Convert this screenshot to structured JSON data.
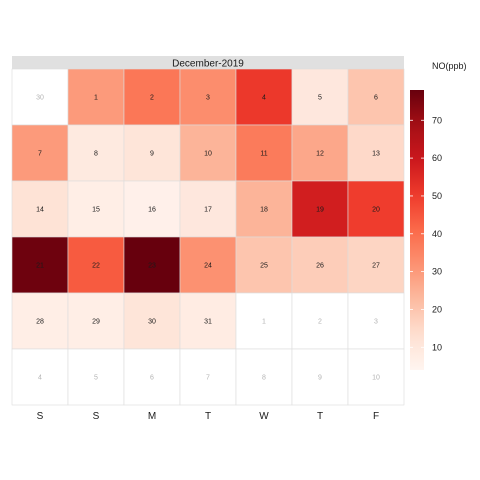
{
  "chart_data": {
    "type": "heatmap",
    "title": "December-2019",
    "legend_title": "NO(ppb)",
    "legend_ticks": [
      10,
      20,
      30,
      40,
      50,
      60,
      70
    ],
    "color_range": [
      4,
      78
    ],
    "color_low": "#fff5f0",
    "color_high": "#67000d",
    "weekday_labels": [
      "S",
      "S",
      "M",
      "T",
      "W",
      "T",
      "F"
    ],
    "cells": [
      {
        "day": "30",
        "value": null,
        "in_month": false
      },
      {
        "day": "1",
        "value": 30,
        "in_month": true
      },
      {
        "day": "2",
        "value": 38,
        "in_month": true
      },
      {
        "day": "3",
        "value": 33,
        "in_month": true
      },
      {
        "day": "4",
        "value": 51,
        "in_month": true
      },
      {
        "day": "5",
        "value": 10,
        "in_month": true
      },
      {
        "day": "6",
        "value": 20,
        "in_month": true
      },
      {
        "day": "7",
        "value": 30,
        "in_month": true
      },
      {
        "day": "8",
        "value": 9,
        "in_month": true
      },
      {
        "day": "9",
        "value": 11,
        "in_month": true
      },
      {
        "day": "10",
        "value": 24,
        "in_month": true
      },
      {
        "day": "11",
        "value": 37,
        "in_month": true
      },
      {
        "day": "12",
        "value": 27,
        "in_month": true
      },
      {
        "day": "13",
        "value": 15,
        "in_month": true
      },
      {
        "day": "14",
        "value": 12,
        "in_month": true
      },
      {
        "day": "15",
        "value": 7,
        "in_month": true
      },
      {
        "day": "16",
        "value": 6,
        "in_month": true
      },
      {
        "day": "17",
        "value": 10,
        "in_month": true
      },
      {
        "day": "18",
        "value": 24,
        "in_month": true
      },
      {
        "day": "19",
        "value": 58,
        "in_month": true
      },
      {
        "day": "20",
        "value": 50,
        "in_month": true
      },
      {
        "day": "21",
        "value": 77,
        "in_month": true
      },
      {
        "day": "22",
        "value": 44,
        "in_month": true
      },
      {
        "day": "23",
        "value": 78,
        "in_month": true
      },
      {
        "day": "24",
        "value": 32,
        "in_month": true
      },
      {
        "day": "25",
        "value": 20,
        "in_month": true
      },
      {
        "day": "26",
        "value": 18,
        "in_month": true
      },
      {
        "day": "27",
        "value": 16,
        "in_month": true
      },
      {
        "day": "28",
        "value": 7,
        "in_month": true
      },
      {
        "day": "29",
        "value": 7,
        "in_month": true
      },
      {
        "day": "30",
        "value": 11,
        "in_month": true
      },
      {
        "day": "31",
        "value": 8,
        "in_month": true
      },
      {
        "day": "1",
        "value": null,
        "in_month": false
      },
      {
        "day": "2",
        "value": null,
        "in_month": false
      },
      {
        "day": "3",
        "value": null,
        "in_month": false
      },
      {
        "day": "4",
        "value": null,
        "in_month": false
      },
      {
        "day": "5",
        "value": null,
        "in_month": false
      },
      {
        "day": "6",
        "value": null,
        "in_month": false
      },
      {
        "day": "7",
        "value": null,
        "in_month": false
      },
      {
        "day": "8",
        "value": null,
        "in_month": false
      },
      {
        "day": "9",
        "value": null,
        "in_month": false
      },
      {
        "day": "10",
        "value": null,
        "in_month": false
      }
    ]
  }
}
